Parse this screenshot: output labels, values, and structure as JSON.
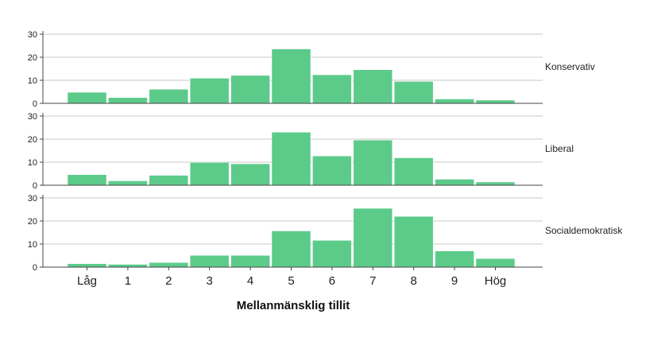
{
  "chart_data": {
    "type": "bar",
    "layout": "faceted-vertical",
    "xlabel": "Mellanmänsklig tillit",
    "categories": [
      "Låg",
      "1",
      "2",
      "3",
      "4",
      "5",
      "6",
      "7",
      "8",
      "9",
      "Hög"
    ],
    "ylim": [
      0,
      30
    ],
    "yticks": [
      0,
      10,
      20,
      30
    ],
    "grid": true,
    "bar_color": "#5ccb8a",
    "panels": [
      {
        "name": "Konservativ",
        "values": [
          4.8,
          2.5,
          6.1,
          10.9,
          12.1,
          23.6,
          12.4,
          14.6,
          9.5,
          1.9,
          1.4
        ]
      },
      {
        "name": "Liberal",
        "values": [
          4.6,
          1.9,
          4.3,
          9.9,
          9.3,
          23.0,
          12.7,
          19.6,
          11.9,
          2.6,
          1.4
        ]
      },
      {
        "name": "Socialdemokratisk",
        "values": [
          1.5,
          1.2,
          2.0,
          5.1,
          5.1,
          15.7,
          11.6,
          25.5,
          22.0,
          7.0,
          3.7
        ]
      }
    ]
  }
}
